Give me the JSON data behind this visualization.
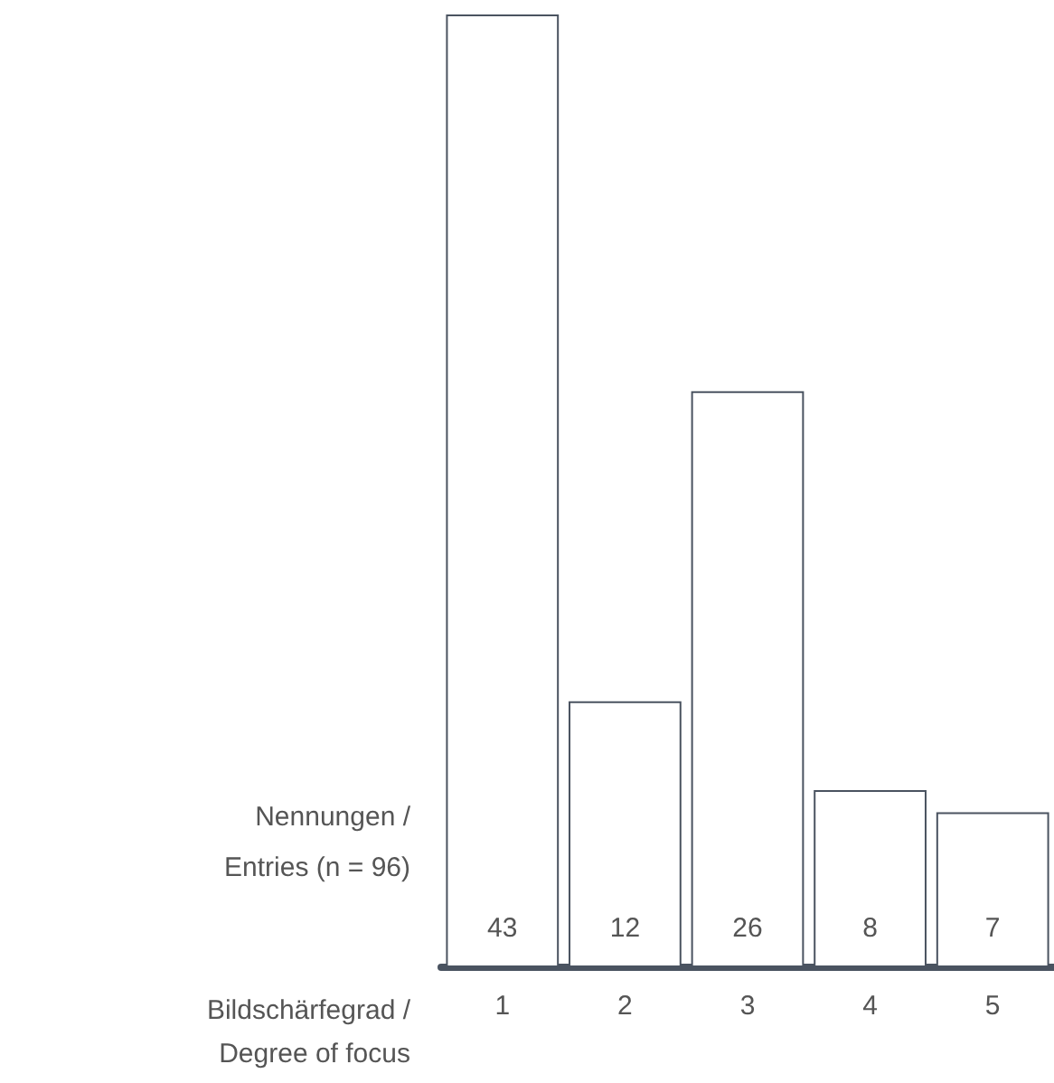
{
  "chart_data": {
    "type": "bar",
    "ylabel": "Nennungen /\nEntries (n = 96)",
    "xlabel": "Bildschärfegrad /\nDegree of focus",
    "categories": [
      "1",
      "2",
      "3",
      "4",
      "5"
    ],
    "values": [
      43,
      12,
      26,
      8,
      7
    ],
    "color": "#ffffff",
    "data_labels": true,
    "grid": false
  }
}
